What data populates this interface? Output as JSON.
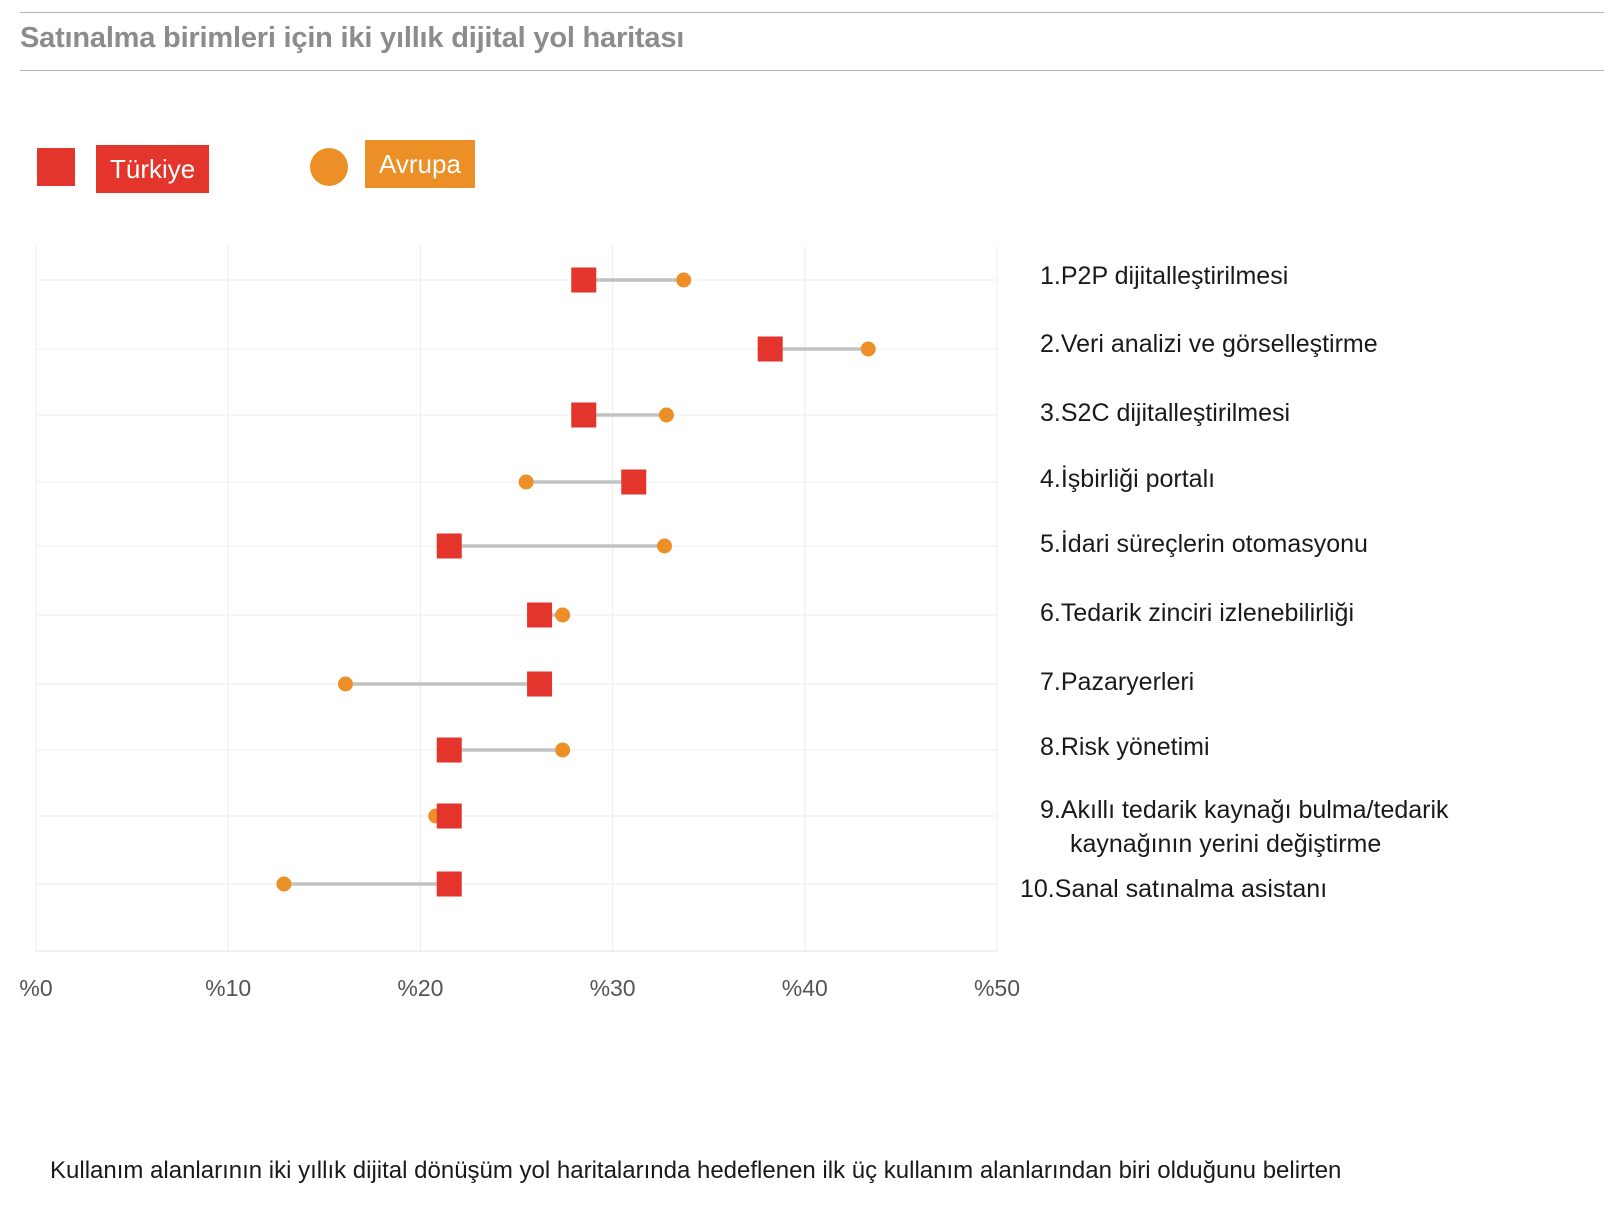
{
  "title": "Satınalma birimleri için iki yıllık dijital yol haritası",
  "legend": {
    "turkey_label": "Türkiye",
    "europe_label": "Avrupa"
  },
  "colors": {
    "turkey": "#e3352b",
    "europe": "#eb8f26",
    "connector": "#c2c2c2",
    "grid": "#ececec"
  },
  "footnote": "Kullanım alanlarının iki yıllık dijital dönüşüm yol haritalarında hedeflenen ilk üç kullanım alanlarından biri olduğunu belirten",
  "chart_data": {
    "type": "scatter",
    "orientation": "horizontal-dumbbell",
    "xlim": [
      0,
      50
    ],
    "x_ticks": [
      "%0",
      "%10",
      "%20",
      "%30",
      "%40",
      "%50"
    ],
    "grid": true,
    "legend_position": "top-left",
    "categories": [
      "1. P2P dijitalleştirilmesi",
      "2. Veri analizi ve görselleştirme",
      "3. S2C dijitalleştirilmesi",
      "4. İşbirliği portalı",
      "5. İdari süreçlerin otomasyonu",
      "6. Tedarik zinciri izlenebilirliği",
      "7. Pazaryerleri",
      "8. Risk yönetimi",
      "9. Akıllı tedarik kaynağı bulma/tedarik kaynağının yerini değiştirme",
      "10. Sanal satınalma asistanı"
    ],
    "series": [
      {
        "name": "Türkiye",
        "marker": "square",
        "values": [
          28.5,
          38.2,
          28.5,
          31.1,
          21.5,
          26.2,
          26.2,
          21.5,
          21.5,
          21.5
        ]
      },
      {
        "name": "Avrupa",
        "marker": "circle",
        "values": [
          33.7,
          43.3,
          32.8,
          25.5,
          32.7,
          27.4,
          16.1,
          27.4,
          20.8,
          12.9
        ]
      }
    ]
  },
  "rows_display": [
    {
      "num": "1.",
      "text": "P2P dijitalleştirilmesi"
    },
    {
      "num": "2.",
      "text": "Veri analizi ve görselleştirme"
    },
    {
      "num": "3.",
      "text": "S2C dijitalleştirilmesi"
    },
    {
      "num": "4.",
      "text": "İşbirliği portalı"
    },
    {
      "num": "5.",
      "text": "İdari süreçlerin otomasyonu"
    },
    {
      "num": "6.",
      "text": "Tedarik zinciri izlenebilirliği"
    },
    {
      "num": "7.",
      "text": "Pazaryerleri"
    },
    {
      "num": "8.",
      "text": "Risk yönetimi"
    },
    {
      "num": "9.",
      "text": "Akıllı tedarik kaynağı bulma/tedarik",
      "text2": "kaynağının yerini değiştirme"
    },
    {
      "num": "10.",
      "text": "Sanal satınalma asistanı"
    }
  ]
}
